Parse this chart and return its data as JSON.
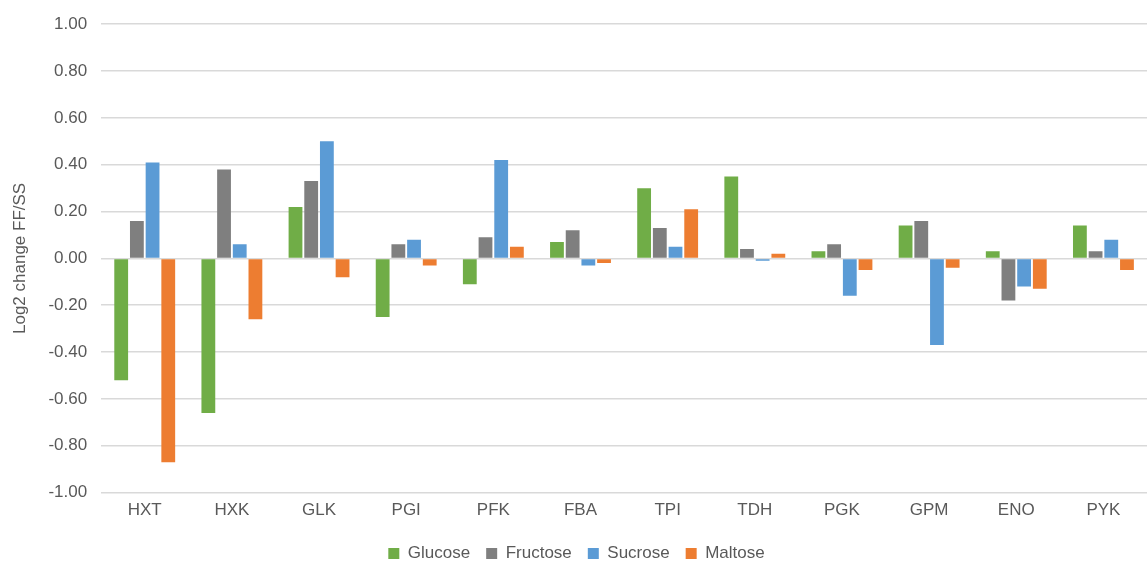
{
  "chart_data": {
    "type": "bar",
    "ylabel": "Log2 change FF/SS",
    "categories": [
      "HXT",
      "HXK",
      "GLK",
      "PGI",
      "PFK",
      "FBA",
      "TPI",
      "TDH",
      "PGK",
      "GPM",
      "ENO",
      "PYK"
    ],
    "series": [
      {
        "name": "Glucose",
        "color": "#70ad47",
        "values": [
          -0.52,
          -0.66,
          0.22,
          -0.25,
          -0.11,
          0.07,
          0.3,
          0.35,
          0.03,
          0.14,
          0.03,
          0.14
        ]
      },
      {
        "name": "Fructose",
        "color": "#7f7f7f",
        "values": [
          0.16,
          0.38,
          0.33,
          0.06,
          0.09,
          0.12,
          0.13,
          0.04,
          0.06,
          0.16,
          -0.18,
          0.03
        ]
      },
      {
        "name": "Sucrose",
        "color": "#5b9bd5",
        "values": [
          0.41,
          0.06,
          0.5,
          0.08,
          0.42,
          -0.03,
          0.05,
          -0.01,
          -0.16,
          -0.37,
          -0.12,
          0.08
        ]
      },
      {
        "name": "Maltose",
        "color": "#ed7d31",
        "values": [
          -0.87,
          -0.26,
          -0.08,
          -0.03,
          0.05,
          -0.02,
          0.21,
          0.02,
          -0.05,
          -0.04,
          -0.13,
          -0.05
        ]
      }
    ],
    "ylim": [
      -1,
      1
    ],
    "yticks": [
      {
        "value": -1,
        "label": "-1.00"
      },
      {
        "value": -0.8,
        "label": "-0.80"
      },
      {
        "value": -0.6,
        "label": "-0.60"
      },
      {
        "value": -0.4,
        "label": "-0.40"
      },
      {
        "value": -0.2,
        "label": "-0.20"
      },
      {
        "value": 0,
        "label": "0.00"
      },
      {
        "value": 0.2,
        "label": "0.20"
      },
      {
        "value": 0.4,
        "label": "0.40"
      },
      {
        "value": 0.6,
        "label": "0.60"
      },
      {
        "value": 0.8,
        "label": "0.80"
      },
      {
        "value": 1,
        "label": "1.00"
      }
    ],
    "grid": "y",
    "legend": "bottom"
  }
}
